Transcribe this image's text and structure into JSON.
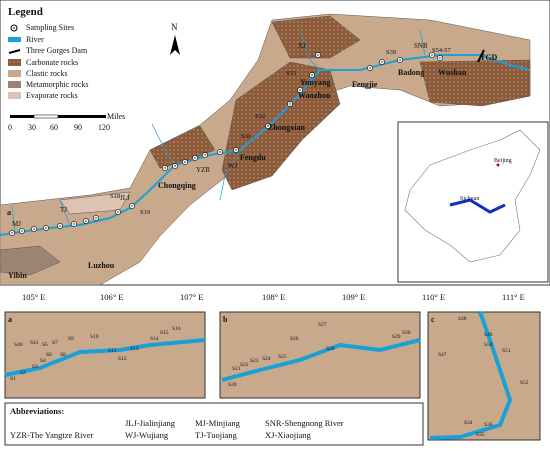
{
  "legend": {
    "title": "Legend",
    "items": [
      "Sampling Sites",
      "River",
      "Three Gorges Dam",
      "Carbonate rocks",
      "Clastic rocks",
      "Metamorphic rocks",
      "Evaporate rocks"
    ]
  },
  "north": "N",
  "scale": {
    "ticks": [
      "0",
      "30",
      "60",
      "90",
      "120"
    ],
    "unit": "Miles"
  },
  "places": [
    "Yibin",
    "Luzhou",
    "Chongqing",
    "Fengdu",
    "Zhongxian",
    "Wanzhou",
    "Yunyang",
    "Fengjie",
    "Badong",
    "Wushan",
    "TGD"
  ],
  "rivers": [
    "MJ",
    "TJ",
    "JLJ",
    "WJ",
    "XJ",
    "SNR",
    "YZR"
  ],
  "sites": [
    "S18",
    "S19",
    "S31",
    "S32",
    "S33",
    "S39",
    "S54-57"
  ],
  "longitudes": [
    "105° E",
    "106° E",
    "107° E",
    "108° E",
    "109° E",
    "110° E",
    "111° E"
  ],
  "inset": [
    "Beijing",
    "Sichuan"
  ],
  "panel_a": {
    "label": "a",
    "sites": [
      "S40",
      "S41",
      "S5",
      "S7",
      "S9",
      "S10",
      "S11",
      "S12",
      "S13",
      "S14",
      "S15",
      "S16",
      "S1",
      "S2",
      "S3",
      "S4",
      "S6",
      "S8"
    ]
  },
  "panel_b": {
    "label": "b",
    "sites": [
      "S20",
      "S21",
      "S22",
      "S23",
      "S24",
      "S25",
      "S26",
      "S27",
      "S28",
      "S29",
      "S30"
    ]
  },
  "panel_c": {
    "label": "c",
    "sites": [
      "S48",
      "S49",
      "S47",
      "S50",
      "S51",
      "S52",
      "S34",
      "S35",
      "S36"
    ]
  },
  "abbreviations": {
    "title": "Abbreviations:",
    "items": [
      "JLJ-Jialinjiang",
      "MJ-Minjiang",
      "SNR-Shengnong River",
      "YZR-The Yangtze River",
      "WJ-Wujiang",
      "TJ-Tuojiang",
      "XJ-Xiaojiang"
    ]
  }
}
